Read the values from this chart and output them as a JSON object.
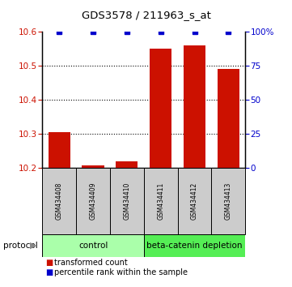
{
  "title": "GDS3578 / 211963_s_at",
  "samples": [
    "GSM434408",
    "GSM434409",
    "GSM434410",
    "GSM434411",
    "GSM434412",
    "GSM434413"
  ],
  "red_values": [
    10.305,
    10.208,
    10.22,
    10.55,
    10.56,
    10.49
  ],
  "blue_values": [
    100,
    100,
    100,
    100,
    100,
    100
  ],
  "ylim_left": [
    10.2,
    10.6
  ],
  "ylim_right": [
    0,
    100
  ],
  "yticks_left": [
    10.2,
    10.3,
    10.4,
    10.5,
    10.6
  ],
  "yticks_right": [
    0,
    25,
    50,
    75,
    100
  ],
  "yticklabels_right": [
    "0",
    "25",
    "50",
    "75",
    "100%"
  ],
  "grid_lines": [
    10.3,
    10.4,
    10.5
  ],
  "bar_color": "#cc1100",
  "marker_color": "#0000cc",
  "control_label": "control",
  "treatment_label": "beta-catenin depletion",
  "protocol_label": "protocol",
  "legend_red": "transformed count",
  "legend_blue": "percentile rank within the sample",
  "control_bg": "#aaffaa",
  "treatment_bg": "#55ee55",
  "sample_bg": "#cccccc",
  "bar_bottom": 10.2,
  "bar_width": 0.65
}
